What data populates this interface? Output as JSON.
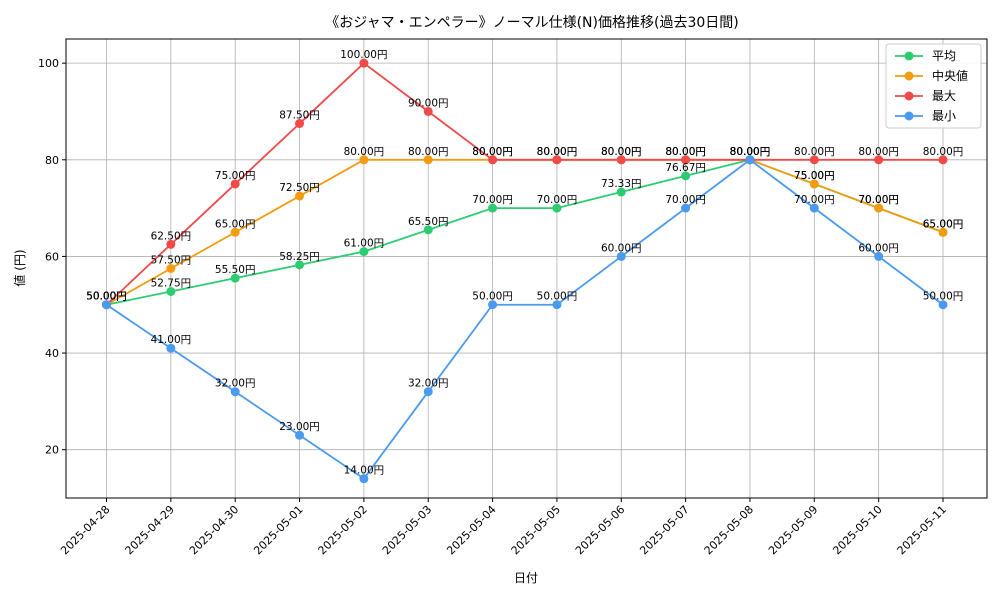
{
  "chart_data": {
    "type": "line",
    "title": "《おジャマ・エンペラー》ノーマル仕様(N)価格推移(過去30日間)",
    "xlabel": "日付",
    "ylabel": "値 (円)",
    "ylim": [
      10,
      105
    ],
    "yticks": [
      20,
      40,
      60,
      80,
      100
    ],
    "grid": true,
    "legend_position": "top-right",
    "value_suffix": "円",
    "categories": [
      "2025-04-28",
      "2025-04-29",
      "2025-04-30",
      "2025-05-01",
      "2025-05-02",
      "2025-05-03",
      "2025-05-04",
      "2025-05-05",
      "2025-05-06",
      "2025-05-07",
      "2025-05-08",
      "2025-05-09",
      "2025-05-10",
      "2025-05-11"
    ],
    "series": [
      {
        "name": "平均",
        "color": "#2ecc71",
        "values": [
          50.0,
          52.75,
          55.5,
          58.25,
          61.0,
          65.5,
          70.0,
          70.0,
          73.33,
          76.67,
          80.0,
          75.0,
          70.0,
          65.0
        ]
      },
      {
        "name": "中央値",
        "color": "#f39c12",
        "values": [
          50.0,
          57.5,
          65.0,
          72.5,
          80.0,
          80.0,
          80.0,
          80.0,
          80.0,
          80.0,
          80.0,
          75.0,
          70.0,
          65.0
        ]
      },
      {
        "name": "最大",
        "color": "#f04a4a",
        "values": [
          50.0,
          62.5,
          75.0,
          87.5,
          100.0,
          90.0,
          80.0,
          80.0,
          80.0,
          80.0,
          80.0,
          80.0,
          80.0,
          80.0
        ]
      },
      {
        "name": "最小",
        "color": "#4a9af0",
        "values": [
          50.0,
          41.0,
          32.0,
          23.0,
          14.0,
          32.0,
          50.0,
          50.0,
          60.0,
          70.0,
          80.0,
          70.0,
          60.0,
          50.0
        ]
      }
    ]
  }
}
